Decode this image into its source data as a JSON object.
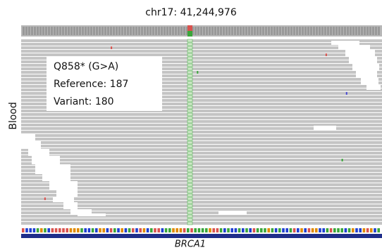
{
  "header": {
    "title": "chr17: 41,244,976"
  },
  "track": {
    "label": "Blood"
  },
  "annotation": {
    "lines": [
      "Q858* (G>A)",
      "Reference: 187",
      "Variant: 180"
    ]
  },
  "gene": {
    "name": "BRCA1"
  }
}
